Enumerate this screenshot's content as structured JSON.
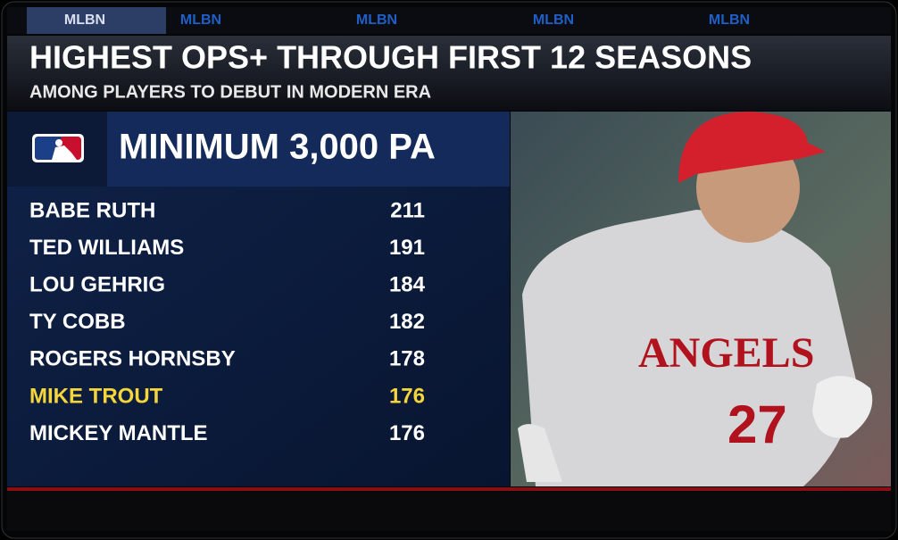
{
  "header": {
    "tabs": [
      "MLBN",
      "MLBN",
      "MLBN",
      "MLBN",
      "MLBN"
    ],
    "title": "HIGHEST OPS+ THROUGH FIRST 12 SEASONS",
    "subtitle": "AMONG PLAYERS TO DEBUT IN MODERN ERA"
  },
  "table": {
    "heading": "MINIMUM 3,000 PA",
    "rows": [
      {
        "name": "BABE RUTH",
        "value": 211,
        "color": "#ffffff"
      },
      {
        "name": "TED WILLIAMS",
        "value": 191,
        "color": "#ffffff"
      },
      {
        "name": "LOU GEHRIG",
        "value": 184,
        "color": "#ffffff"
      },
      {
        "name": "TY COBB",
        "value": 182,
        "color": "#ffffff"
      },
      {
        "name": "ROGERS HORNSBY",
        "value": 178,
        "color": "#ffffff"
      },
      {
        "name": "MIKE TROUT",
        "value": 176,
        "color": "#f5d63a"
      },
      {
        "name": "MICKEY MANTLE",
        "value": 176,
        "color": "#ffffff"
      }
    ]
  }
}
